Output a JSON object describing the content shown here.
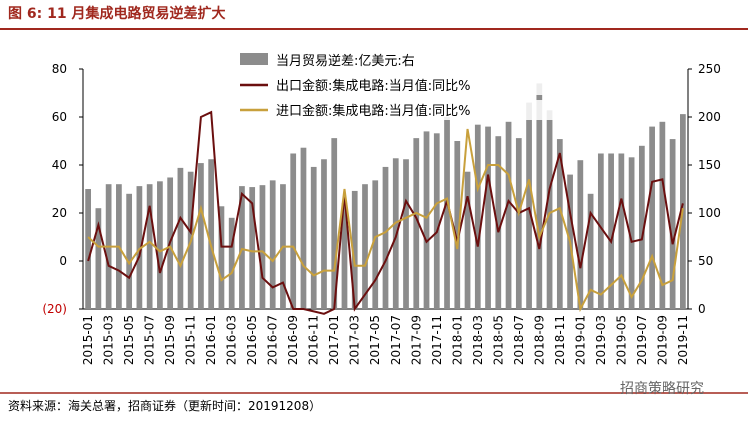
{
  "chart_data": {
    "type": "bar",
    "title": "图 6:  11 月集成电路贸易逆差扩大",
    "source": "资料来源：海关总署，招商证券（更新时间：20191208）",
    "watermark": "招商策略研究",
    "categories": [
      "2015-01",
      null,
      "2015-03",
      null,
      "2015-05",
      null,
      "2015-07",
      null,
      "2015-09",
      null,
      "2015-11",
      null,
      "2016-01",
      null,
      "2016-03",
      null,
      "2016-05",
      null,
      "2016-07",
      null,
      "2016-09",
      null,
      "2016-11",
      null,
      "2017-01",
      null,
      "2017-03",
      null,
      "2017-05",
      null,
      "2017-07",
      null,
      "2017-09",
      null,
      "2017-11",
      null,
      "2018-01",
      null,
      "2018-03",
      null,
      "2018-05",
      null,
      "2018-07",
      null,
      "2018-09",
      null,
      "2018-11",
      null,
      "2019-01",
      null,
      "2019-03",
      null,
      "2019-05",
      null,
      "2019-07",
      null,
      "2019-09",
      null,
      "2019-11"
    ],
    "ylim": [
      -20,
      80
    ],
    "yticks": [
      {
        "value": -20,
        "label": "(20)"
      },
      0,
      20,
      40,
      60,
      80
    ],
    "y2lim": [
      0,
      250
    ],
    "y2ticks": [
      0,
      50,
      100,
      150,
      200,
      250
    ],
    "series": [
      {
        "name": "当月贸易逆差:亿美元:右",
        "type": "bar",
        "axis": "y2",
        "color": "#8c8c8c",
        "values": [
          125,
          105,
          130,
          130,
          120,
          128,
          130,
          133,
          137,
          147,
          143,
          152,
          156,
          107,
          95,
          128,
          127,
          129,
          134,
          130,
          162,
          168,
          148,
          156,
          178,
          110,
          123,
          130,
          134,
          148,
          157,
          156,
          178,
          185,
          183,
          200,
          175,
          143,
          192,
          190,
          180,
          195,
          178,
          215,
          235,
          207,
          177,
          140,
          155,
          120,
          162,
          162,
          162,
          158,
          170,
          190,
          195,
          177,
          203
        ]
      },
      {
        "name": "出口金额:集成电路:当月值:同比%",
        "type": "line",
        "axis": "y",
        "color": "#6b0f0f",
        "values": [
          0,
          15,
          -2,
          -4,
          -7,
          2,
          23,
          -5,
          8,
          18,
          12,
          60,
          62,
          6,
          6,
          28,
          24,
          -7,
          -11,
          -9,
          -20,
          -20,
          -21,
          -22,
          -20,
          28,
          -20,
          -14,
          -8,
          0,
          10,
          25,
          18,
          8,
          12,
          25,
          8,
          27,
          6,
          36,
          12,
          25,
          20,
          22,
          5,
          30,
          45,
          20,
          -3,
          20,
          14,
          8,
          26,
          8,
          9,
          33,
          34,
          7,
          24
        ]
      },
      {
        "name": "进口金额:集成电路:当月值:同比%",
        "type": "line",
        "axis": "y",
        "color": "#c8a03c",
        "values": [
          10,
          6,
          6,
          6,
          -1,
          5,
          8,
          4,
          6,
          -2,
          8,
          22,
          6,
          -8,
          -5,
          5,
          4,
          4,
          0,
          6,
          6,
          -2,
          -6,
          -4,
          -4,
          30,
          -2,
          -2,
          10,
          12,
          16,
          18,
          20,
          18,
          24,
          26,
          5,
          55,
          30,
          40,
          40,
          36,
          20,
          34,
          10,
          20,
          22,
          8,
          -20,
          -12,
          -14,
          -10,
          -6,
          -15,
          -8,
          2,
          -10,
          -8,
          22
        ]
      }
    ]
  }
}
